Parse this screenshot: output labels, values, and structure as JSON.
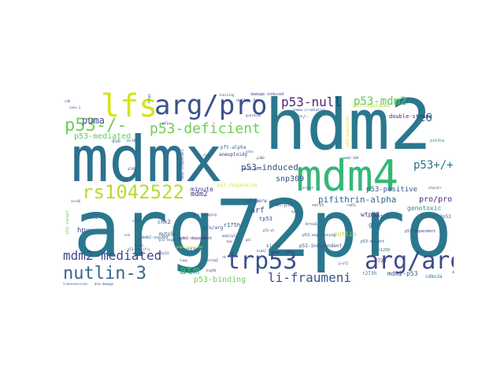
{
  "words": [
    {
      "text": "arg72pro",
      "color": "#2a788e"
    },
    {
      "text": "hdm2",
      "color": "#2a788e"
    },
    {
      "text": "mdmx",
      "color": "#2c728e"
    },
    {
      "text": "mdm4",
      "color": "#35b779"
    },
    {
      "text": "arg/pro",
      "color": "#3b528b"
    },
    {
      "text": "lfs",
      "color": "#d8e219"
    },
    {
      "text": "rs1042522",
      "color": "#b5de2b"
    },
    {
      "text": "trp53",
      "color": "#3b528b"
    },
    {
      "text": "arg/arg",
      "color": "#3e4a89"
    },
    {
      "text": "nutlin-3",
      "color": "#31688e"
    },
    {
      "text": "p53-/-",
      "color": "#6ece58"
    },
    {
      "text": "p53-deficient",
      "color": "#6ece58"
    },
    {
      "text": "p53-null",
      "color": "#482878"
    },
    {
      "text": "p53-mdm2",
      "color": "#5ec962"
    },
    {
      "text": "mdm2-mediated",
      "color": "#3e4a89"
    },
    {
      "text": "li-fraumeni",
      "color": "#3b528b"
    },
    {
      "text": "atm",
      "color": "#3aba76"
    },
    {
      "text": "p53+/+",
      "color": "#2c728e"
    },
    {
      "text": "e6",
      "color": "#31688e"
    },
    {
      "text": "pifithrin-alpha",
      "color": "#31688e"
    },
    {
      "text": "p53-induced",
      "color": "#3b528b"
    },
    {
      "text": "puma",
      "color": "#3e4a89"
    },
    {
      "text": "p53-mediated",
      "color": "#5ec962"
    },
    {
      "text": "snp309",
      "color": "#3b528b"
    },
    {
      "text": "minute",
      "color": "#443983"
    },
    {
      "text": "pro/pro",
      "color": "#472d7b"
    },
    {
      "text": "genotoxic",
      "color": "#21918c"
    },
    {
      "text": "mdm2-p53",
      "color": "#3b528b"
    },
    {
      "text": "p53-binding",
      "color": "#6ece58"
    },
    {
      "text": "p53-positive",
      "color": "#3b528b"
    },
    {
      "text": "wtp53",
      "color": "#46337e"
    },
    {
      "text": "double-strand",
      "color": "#481f71"
    },
    {
      "text": "arf",
      "color": "#3e4a89"
    },
    {
      "text": "gof",
      "color": "#31688e"
    },
    {
      "text": "nutlin",
      "color": "#b5de2b"
    },
    {
      "text": "p53-regulated",
      "color": "#b5de2b"
    },
    {
      "text": "chk2",
      "color": "#3b528b"
    },
    {
      "text": "mutp53",
      "color": "#3e4a89"
    },
    {
      "text": "p53-responsive",
      "color": "#d8e219"
    },
    {
      "text": "hpv",
      "color": "#3b528b"
    },
    {
      "text": "mdm2",
      "color": "#46337e"
    },
    {
      "text": "r175h",
      "color": "#3b528b"
    },
    {
      "text": "r72p",
      "color": "#472d7b"
    },
    {
      "text": "pro/arg",
      "color": "#3e4a89"
    },
    {
      "text": "wt-p53",
      "color": "#3e4a89"
    },
    {
      "text": "p53-independent",
      "color": "#3b528b"
    },
    {
      "text": "mdm2-dependent",
      "color": "#482173"
    },
    {
      "text": "r273h",
      "color": "#2c728e"
    },
    {
      "text": "deltat33p53",
      "color": "#31688e"
    },
    {
      "text": "cdkn2a",
      "color": "#2c728e"
    },
    {
      "text": "pro",
      "color": "#31688e"
    },
    {
      "text": "tp53",
      "color": "#3e4a89"
    },
    {
      "text": "p53-expressing",
      "color": "#3b528b"
    },
    {
      "text": "p53-dependent",
      "color": "#3e4a89"
    },
    {
      "text": "p53-mutant",
      "color": "#3b528b"
    },
    {
      "text": "ht29",
      "color": "#3b528b"
    },
    {
      "text": "h1299",
      "color": "#2c728e"
    },
    {
      "text": "p53+/-",
      "color": "#2c728e"
    },
    {
      "text": "aneuploidy",
      "color": "#46337e"
    },
    {
      "text": "pft-alpha",
      "color": "#31688e"
    },
    {
      "text": "mdm2-snp309",
      "color": "#31688e"
    },
    {
      "text": "damage-induced",
      "color": "#3b528b"
    },
    {
      "text": "nutlin-3a",
      "color": "#3e4a89"
    },
    {
      "text": "ionizing",
      "color": "#3b528b"
    },
    {
      "text": "dsb",
      "color": "#31688e"
    },
    {
      "text": "g2/m",
      "color": "#3b528b"
    },
    {
      "text": "arrest",
      "color": "#3b528b"
    },
    {
      "text": "brca1",
      "color": "#3b528b"
    },
    {
      "text": "brca2",
      "color": "#3b528b"
    },
    {
      "text": "telomere",
      "color": "#3e4a89"
    },
    {
      "text": "sirt1",
      "color": "#3b528b"
    },
    {
      "text": "anti-p53",
      "color": "#46337e"
    },
    {
      "text": "p53-target",
      "color": "#6ece58"
    },
    {
      "text": "ser46",
      "color": "#3b528b"
    },
    {
      "text": "chk1",
      "color": "#31688e"
    },
    {
      "text": "gamma-irradiation",
      "color": "#3b528b"
    },
    {
      "text": "papillomavirus",
      "color": "#d8e219"
    },
    {
      "text": "pik3ca",
      "color": "#21918c"
    },
    {
      "text": "ser15",
      "color": "#3b528b"
    },
    {
      "text": "guardian",
      "color": "#3b528b"
    },
    {
      "text": "npm",
      "color": "#3b528b"
    },
    {
      "text": "pten",
      "color": "#3b528b"
    },
    {
      "text": "rb",
      "color": "#482878"
    },
    {
      "text": "kras",
      "color": "#31688e"
    },
    {
      "text": "bax",
      "color": "#3b528b"
    },
    {
      "text": "p21",
      "color": "#3b528b"
    },
    {
      "text": "p300",
      "color": "#3b528b"
    },
    {
      "text": "mdm2/p53",
      "color": "#3b528b"
    },
    {
      "text": "p53-negative",
      "color": "#3b528b"
    },
    {
      "text": "rad51",
      "color": "#3b528b"
    },
    {
      "text": "hipk2",
      "color": "#3b528b"
    },
    {
      "text": "mdm2-309",
      "color": "#3b528b"
    },
    {
      "text": "p53-specific",
      "color": "#3b528b"
    },
    {
      "text": "transversions",
      "color": "#3b528b"
    },
    {
      "text": "dna-damage",
      "color": "#3b528b"
    },
    {
      "text": "hsp90",
      "color": "#3b528b"
    },
    {
      "text": "saos-2",
      "color": "#3b528b"
    },
    {
      "text": "cdk",
      "color": "#3b528b"
    },
    {
      "text": "p53-wt",
      "color": "#3b528b"
    },
    {
      "text": "p53-induction",
      "color": "#d8e219"
    },
    {
      "text": "pml",
      "color": "#3b528b"
    },
    {
      "text": "xiap",
      "color": "#3b528b"
    },
    {
      "text": "mutp53",
      "color": "#3b528b"
    },
    {
      "text": "dna-damaging",
      "color": "#3b528b"
    },
    {
      "text": "mdm2-independent",
      "color": "#3b528b"
    },
    {
      "text": "cdk2",
      "color": "#3b528b"
    },
    {
      "text": "erk",
      "color": "#3b528b"
    },
    {
      "text": "ser20",
      "color": "#3b528b"
    },
    {
      "text": "a549",
      "color": "#3b528b"
    },
    {
      "text": "atm/atr",
      "color": "#3b528b"
    },
    {
      "text": "lung",
      "color": "#3b528b"
    },
    {
      "text": "pro72",
      "color": "#3b528b"
    }
  ]
}
